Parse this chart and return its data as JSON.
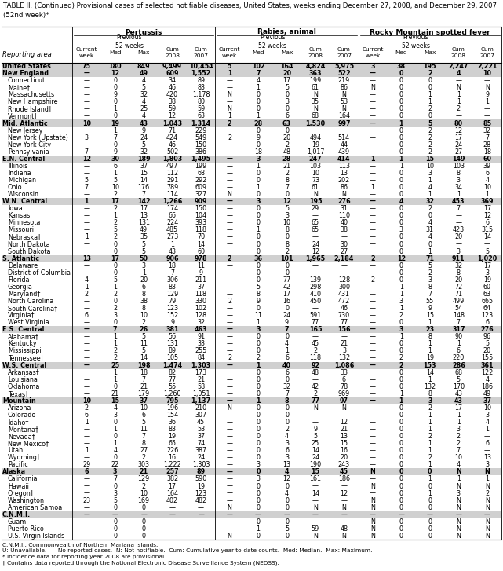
{
  "title": "TABLE II. (Continued) Provisional cases of selected notifiable diseases, United States, weeks ending December 27, 2008, and December 29, 2007\n(52nd week)*",
  "row_label_col": "Reporting area",
  "footnotes": [
    "C.N.M.I.: Commonwealth of Northern Mariana Islands.",
    "U: Unavailable.  — No reported cases.  N: Not notifiable.  Cum: Cumulative year-to-date counts.  Med: Median.  Max: Maximum.",
    "* Incidence data for reporting year 2008 are provisional.",
    "† Contains data reported through the National Electronic Disease Surveillance System (NEDSS)."
  ],
  "rows": [
    [
      "United States",
      "75",
      "180",
      "849",
      "9,499",
      "10,454",
      "5",
      "102",
      "164",
      "4,824",
      "5,975",
      "3",
      "38",
      "195",
      "2,247",
      "2,221"
    ],
    [
      "New England",
      "—",
      "12",
      "49",
      "609",
      "1,552",
      "1",
      "7",
      "20",
      "363",
      "522",
      "—",
      "0",
      "2",
      "4",
      "10"
    ],
    [
      "Connecticut",
      "—",
      "0",
      "4",
      "34",
      "89",
      "—",
      "4",
      "17",
      "199",
      "219",
      "—",
      "0",
      "0",
      "—",
      "—"
    ],
    [
      "Maine†",
      "—",
      "0",
      "5",
      "46",
      "83",
      "—",
      "1",
      "5",
      "61",
      "86",
      "N",
      "0",
      "0",
      "N",
      "N"
    ],
    [
      "Massachusetts",
      "—",
      "9",
      "32",
      "420",
      "1,178",
      "N",
      "0",
      "0",
      "N",
      "N",
      "—",
      "0",
      "1",
      "1",
      "9"
    ],
    [
      "New Hampshire",
      "—",
      "0",
      "4",
      "38",
      "80",
      "—",
      "0",
      "3",
      "35",
      "53",
      "—",
      "0",
      "1",
      "1",
      "1"
    ],
    [
      "Rhode Island†",
      "—",
      "1",
      "25",
      "59",
      "59",
      "N",
      "0",
      "0",
      "N",
      "N",
      "—",
      "0",
      "2",
      "2",
      "—"
    ],
    [
      "Vermont†",
      "—",
      "0",
      "4",
      "12",
      "63",
      "1",
      "1",
      "6",
      "68",
      "164",
      "—",
      "0",
      "0",
      "—",
      "—"
    ],
    [
      "Mid. Atlantic",
      "10",
      "19",
      "43",
      "1,043",
      "1,314",
      "2",
      "28",
      "63",
      "1,530",
      "997",
      "—",
      "1",
      "5",
      "80",
      "85"
    ],
    [
      "New Jersey",
      "—",
      "1",
      "9",
      "71",
      "229",
      "—",
      "0",
      "0",
      "—",
      "—",
      "—",
      "0",
      "2",
      "12",
      "32"
    ],
    [
      "New York (Upstate)",
      "3",
      "7",
      "24",
      "424",
      "549",
      "2",
      "9",
      "20",
      "494",
      "514",
      "—",
      "0",
      "2",
      "17",
      "7"
    ],
    [
      "New York City",
      "—",
      "0",
      "5",
      "46",
      "150",
      "—",
      "0",
      "2",
      "19",
      "44",
      "—",
      "0",
      "2",
      "24",
      "28"
    ],
    [
      "Pennsylvania",
      "7",
      "9",
      "32",
      "502",
      "386",
      "—",
      "18",
      "48",
      "1,017",
      "439",
      "—",
      "0",
      "2",
      "27",
      "18"
    ],
    [
      "E.N. Central",
      "12",
      "30",
      "189",
      "1,803",
      "1,495",
      "—",
      "3",
      "28",
      "247",
      "414",
      "1",
      "1",
      "15",
      "149",
      "60"
    ],
    [
      "Illinois",
      "—",
      "6",
      "37",
      "497",
      "199",
      "—",
      "1",
      "21",
      "103",
      "113",
      "—",
      "1",
      "10",
      "103",
      "39"
    ],
    [
      "Indiana",
      "—",
      "1",
      "15",
      "112",
      "68",
      "—",
      "0",
      "2",
      "10",
      "13",
      "—",
      "0",
      "3",
      "8",
      "6"
    ],
    [
      "Michigan",
      "5",
      "5",
      "14",
      "291",
      "292",
      "—",
      "0",
      "8",
      "73",
      "202",
      "—",
      "0",
      "1",
      "3",
      "4"
    ],
    [
      "Ohio",
      "7",
      "10",
      "176",
      "789",
      "609",
      "—",
      "1",
      "7",
      "61",
      "86",
      "1",
      "0",
      "4",
      "34",
      "10"
    ],
    [
      "Wisconsin",
      "—",
      "2",
      "7",
      "114",
      "327",
      "N",
      "0",
      "0",
      "N",
      "N",
      "—",
      "0",
      "1",
      "1",
      "1"
    ],
    [
      "W.N. Central",
      "1",
      "17",
      "142",
      "1,266",
      "909",
      "—",
      "3",
      "12",
      "195",
      "276",
      "—",
      "4",
      "32",
      "453",
      "369"
    ],
    [
      "Iowa",
      "—",
      "2",
      "17",
      "174",
      "150",
      "—",
      "0",
      "5",
      "29",
      "31",
      "—",
      "0",
      "2",
      "7",
      "17"
    ],
    [
      "Kansas",
      "—",
      "1",
      "13",
      "66",
      "104",
      "—",
      "0",
      "3",
      "—",
      "110",
      "—",
      "0",
      "0",
      "—",
      "12"
    ],
    [
      "Minnesota",
      "—",
      "2",
      "131",
      "224",
      "393",
      "—",
      "0",
      "10",
      "65",
      "40",
      "—",
      "0",
      "4",
      "—",
      "6"
    ],
    [
      "Missouri",
      "—",
      "5",
      "49",
      "485",
      "118",
      "—",
      "1",
      "8",
      "65",
      "38",
      "—",
      "3",
      "31",
      "423",
      "315"
    ],
    [
      "Nebraska†",
      "1",
      "2",
      "35",
      "273",
      "70",
      "—",
      "0",
      "0",
      "—",
      "—",
      "—",
      "0",
      "4",
      "20",
      "14"
    ],
    [
      "North Dakota",
      "—",
      "0",
      "5",
      "1",
      "14",
      "—",
      "0",
      "8",
      "24",
      "30",
      "—",
      "0",
      "0",
      "—",
      "—"
    ],
    [
      "South Dakota",
      "—",
      "0",
      "5",
      "43",
      "60",
      "—",
      "0",
      "2",
      "12",
      "27",
      "—",
      "0",
      "1",
      "3",
      "5"
    ],
    [
      "S. Atlantic",
      "13",
      "17",
      "50",
      "906",
      "978",
      "2",
      "36",
      "101",
      "1,965",
      "2,184",
      "2",
      "12",
      "71",
      "911",
      "1,020"
    ],
    [
      "Delaware",
      "—",
      "0",
      "3",
      "18",
      "11",
      "—",
      "0",
      "0",
      "—",
      "—",
      "—",
      "0",
      "5",
      "32",
      "17"
    ],
    [
      "District of Columbia",
      "—",
      "0",
      "1",
      "7",
      "9",
      "—",
      "0",
      "0",
      "—",
      "—",
      "—",
      "0",
      "2",
      "8",
      "3"
    ],
    [
      "Florida",
      "4",
      "5",
      "20",
      "306",
      "211",
      "—",
      "0",
      "77",
      "139",
      "128",
      "2",
      "0",
      "3",
      "20",
      "19"
    ],
    [
      "Georgia",
      "1",
      "1",
      "6",
      "83",
      "37",
      "—",
      "5",
      "42",
      "298",
      "300",
      "—",
      "1",
      "8",
      "72",
      "60"
    ],
    [
      "Maryland†",
      "2",
      "2",
      "8",
      "129",
      "118",
      "—",
      "8",
      "17",
      "410",
      "431",
      "—",
      "1",
      "7",
      "71",
      "63"
    ],
    [
      "North Carolina",
      "—",
      "0",
      "38",
      "79",
      "330",
      "2",
      "9",
      "16",
      "450",
      "472",
      "—",
      "3",
      "55",
      "499",
      "665"
    ],
    [
      "South Carolina†",
      "—",
      "2",
      "8",
      "123",
      "102",
      "—",
      "0",
      "0",
      "—",
      "46",
      "—",
      "1",
      "9",
      "54",
      "64"
    ],
    [
      "Virginia†",
      "6",
      "3",
      "10",
      "152",
      "128",
      "—",
      "11",
      "24",
      "591",
      "730",
      "—",
      "2",
      "15",
      "148",
      "123"
    ],
    [
      "West Virginia",
      "—",
      "0",
      "2",
      "9",
      "32",
      "—",
      "1",
      "9",
      "77",
      "77",
      "—",
      "0",
      "1",
      "7",
      "6"
    ],
    [
      "E.S. Central",
      "—",
      "7",
      "26",
      "381",
      "463",
      "—",
      "3",
      "7",
      "165",
      "156",
      "—",
      "3",
      "23",
      "317",
      "276"
    ],
    [
      "Alabama†",
      "—",
      "1",
      "5",
      "56",
      "91",
      "—",
      "0",
      "0",
      "—",
      "—",
      "—",
      "1",
      "8",
      "90",
      "96"
    ],
    [
      "Kentucky",
      "—",
      "1",
      "11",
      "131",
      "33",
      "—",
      "0",
      "4",
      "45",
      "21",
      "—",
      "0",
      "1",
      "1",
      "5"
    ],
    [
      "Mississippi",
      "—",
      "2",
      "5",
      "89",
      "255",
      "—",
      "0",
      "1",
      "2",
      "3",
      "—",
      "0",
      "1",
      "6",
      "20"
    ],
    [
      "Tennessee†",
      "—",
      "2",
      "14",
      "105",
      "84",
      "2",
      "2",
      "6",
      "118",
      "132",
      "—",
      "2",
      "19",
      "220",
      "155"
    ],
    [
      "W.S. Central",
      "—",
      "25",
      "198",
      "1,474",
      "1,303",
      "—",
      "1",
      "40",
      "92",
      "1,086",
      "—",
      "2",
      "153",
      "286",
      "361"
    ],
    [
      "Arkansas†",
      "—",
      "1",
      "18",
      "82",
      "173",
      "—",
      "0",
      "6",
      "48",
      "33",
      "—",
      "0",
      "14",
      "68",
      "122"
    ],
    [
      "Louisiana",
      "—",
      "1",
      "7",
      "77",
      "21",
      "—",
      "0",
      "0",
      "—",
      "6",
      "—",
      "0",
      "1",
      "5",
      "4"
    ],
    [
      "Oklahoma",
      "—",
      "0",
      "21",
      "55",
      "58",
      "—",
      "0",
      "32",
      "42",
      "78",
      "—",
      "0",
      "132",
      "170",
      "186"
    ],
    [
      "Texas†",
      "—",
      "21",
      "179",
      "1,260",
      "1,051",
      "—",
      "0",
      "7",
      "2",
      "969",
      "—",
      "1",
      "8",
      "43",
      "49"
    ],
    [
      "Mountain",
      "10",
      "15",
      "37",
      "795",
      "1,137",
      "—",
      "1",
      "8",
      "77",
      "97",
      "—",
      "1",
      "3",
      "43",
      "37"
    ],
    [
      "Arizona",
      "2",
      "4",
      "10",
      "196",
      "210",
      "N",
      "0",
      "0",
      "N",
      "N",
      "—",
      "0",
      "2",
      "17",
      "10"
    ],
    [
      "Colorado",
      "6",
      "3",
      "6",
      "154",
      "307",
      "—",
      "0",
      "0",
      "—",
      "—",
      "—",
      "0",
      "1",
      "1",
      "3"
    ],
    [
      "Idaho†",
      "1",
      "0",
      "5",
      "36",
      "45",
      "—",
      "0",
      "0",
      "—",
      "12",
      "—",
      "0",
      "1",
      "1",
      "4"
    ],
    [
      "Montana†",
      "—",
      "1",
      "11",
      "83",
      "53",
      "—",
      "0",
      "2",
      "9",
      "21",
      "—",
      "0",
      "1",
      "3",
      "1"
    ],
    [
      "Nevada†",
      "—",
      "0",
      "7",
      "19",
      "37",
      "—",
      "0",
      "4",
      "5",
      "13",
      "—",
      "0",
      "2",
      "2",
      "—"
    ],
    [
      "New Mexico†",
      "—",
      "1",
      "8",
      "65",
      "74",
      "—",
      "0",
      "3",
      "25",
      "15",
      "—",
      "0",
      "1",
      "2",
      "6"
    ],
    [
      "Utah",
      "1",
      "4",
      "27",
      "226",
      "387",
      "—",
      "0",
      "6",
      "14",
      "16",
      "—",
      "0",
      "1",
      "7",
      "—"
    ],
    [
      "Wyoming†",
      "—",
      "0",
      "2",
      "16",
      "24",
      "—",
      "0",
      "3",
      "24",
      "20",
      "—",
      "0",
      "2",
      "10",
      "13"
    ],
    [
      "Pacific",
      "29",
      "22",
      "303",
      "1,222",
      "1,303",
      "—",
      "3",
      "13",
      "190",
      "243",
      "—",
      "0",
      "1",
      "4",
      "3"
    ],
    [
      "Alaska",
      "6",
      "3",
      "21",
      "257",
      "89",
      "—",
      "0",
      "4",
      "15",
      "45",
      "N",
      "0",
      "0",
      "N",
      "N"
    ],
    [
      "California",
      "—",
      "7",
      "129",
      "382",
      "590",
      "—",
      "3",
      "12",
      "161",
      "186",
      "—",
      "0",
      "1",
      "1",
      "1"
    ],
    [
      "Hawaii",
      "—",
      "0",
      "2",
      "17",
      "19",
      "—",
      "0",
      "0",
      "—",
      "—",
      "N",
      "0",
      "0",
      "N",
      "N"
    ],
    [
      "Oregon†",
      "—",
      "3",
      "10",
      "164",
      "123",
      "—",
      "0",
      "4",
      "14",
      "12",
      "—",
      "0",
      "1",
      "3",
      "2"
    ],
    [
      "Washington",
      "23",
      "5",
      "169",
      "402",
      "482",
      "—",
      "0",
      "0",
      "—",
      "—",
      "N",
      "0",
      "0",
      "N",
      "N"
    ],
    [
      "American Samoa",
      "—",
      "0",
      "0",
      "—",
      "—",
      "N",
      "0",
      "0",
      "N",
      "N",
      "N",
      "0",
      "0",
      "N",
      "N"
    ],
    [
      "C.N.M.I.",
      "—",
      "—",
      "—",
      "—",
      "—",
      "—",
      "—",
      "—",
      "—",
      "—",
      "—",
      "—",
      "—",
      "—",
      "—"
    ],
    [
      "Guam",
      "—",
      "0",
      "0",
      "—",
      "—",
      "—",
      "0",
      "0",
      "—",
      "—",
      "N",
      "0",
      "0",
      "N",
      "N"
    ],
    [
      "Puerto Rico",
      "—",
      "0",
      "0",
      "—",
      "—",
      "—",
      "1",
      "5",
      "59",
      "48",
      "N",
      "0",
      "0",
      "N",
      "N"
    ],
    [
      "U.S. Virgin Islands",
      "—",
      "0",
      "0",
      "—",
      "—",
      "N",
      "0",
      "0",
      "N",
      "N",
      "N",
      "0",
      "0",
      "N",
      "N"
    ]
  ],
  "bold_rows": [
    0,
    1,
    8,
    13,
    19,
    27,
    37,
    42,
    47,
    57,
    63
  ],
  "shaded_rows": [
    0,
    1,
    8,
    13,
    19,
    27,
    37,
    42,
    47,
    57,
    63
  ]
}
